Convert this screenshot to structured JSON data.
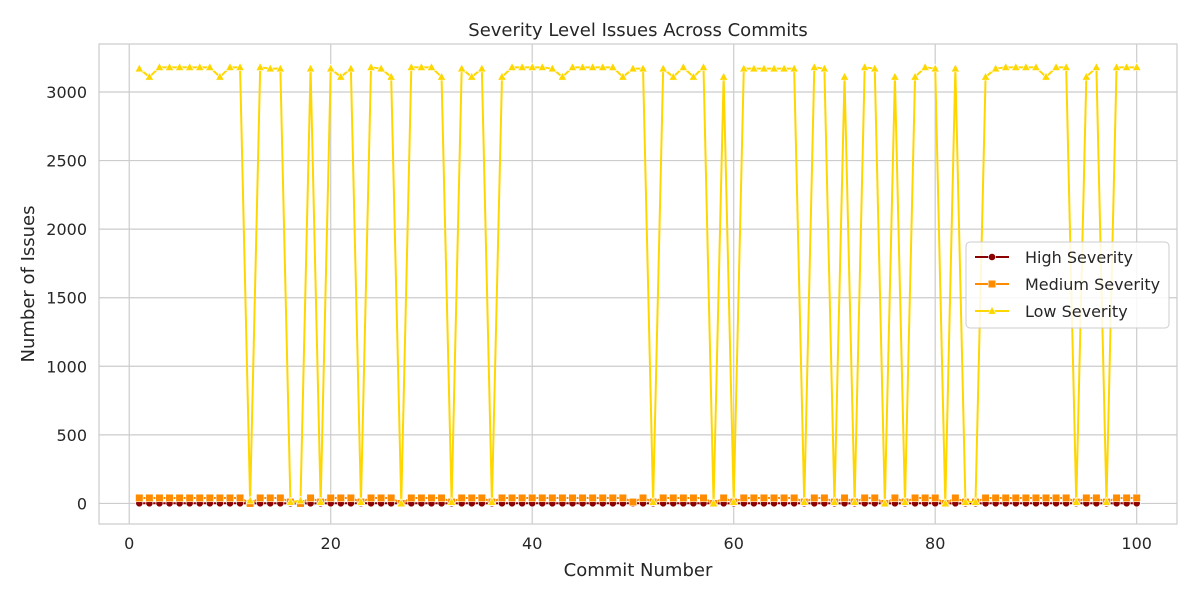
{
  "chart_data": {
    "type": "line",
    "title": "Severity Level Issues Across Commits",
    "xlabel": "Commit Number",
    "ylabel": "Number of Issues",
    "xlim": [
      -3,
      104
    ],
    "ylim": [
      -150,
      3350
    ],
    "xticks": [
      0,
      20,
      40,
      60,
      80,
      100
    ],
    "yticks": [
      0,
      500,
      1000,
      1500,
      2000,
      2500,
      3000
    ],
    "grid": true,
    "legend_position": "center-right",
    "x": [
      1,
      2,
      3,
      4,
      5,
      6,
      7,
      8,
      9,
      10,
      11,
      12,
      13,
      14,
      15,
      16,
      17,
      18,
      19,
      20,
      21,
      22,
      23,
      24,
      25,
      26,
      27,
      28,
      29,
      30,
      31,
      32,
      33,
      34,
      35,
      36,
      37,
      38,
      39,
      40,
      41,
      42,
      43,
      44,
      45,
      46,
      47,
      48,
      49,
      50,
      51,
      52,
      53,
      54,
      55,
      56,
      57,
      58,
      59,
      60,
      61,
      62,
      63,
      64,
      65,
      66,
      67,
      68,
      69,
      70,
      71,
      72,
      73,
      74,
      75,
      76,
      77,
      78,
      79,
      80,
      81,
      82,
      83,
      84,
      85,
      86,
      87,
      88,
      89,
      90,
      91,
      92,
      93,
      94,
      95,
      96,
      97,
      98,
      99,
      100
    ],
    "series": [
      {
        "name": "High Severity",
        "color": "#8b0000",
        "marker": "circle",
        "values": [
          1,
          1,
          1,
          1,
          1,
          1,
          1,
          1,
          1,
          1,
          1,
          0,
          1,
          1,
          1,
          0,
          0,
          1,
          0,
          1,
          1,
          1,
          1,
          1,
          1,
          1,
          0,
          1,
          1,
          1,
          1,
          0,
          1,
          1,
          1,
          0,
          1,
          1,
          1,
          1,
          1,
          1,
          1,
          1,
          1,
          1,
          1,
          1,
          1,
          1,
          1,
          0,
          1,
          1,
          1,
          1,
          1,
          0,
          1,
          0,
          1,
          1,
          1,
          1,
          1,
          1,
          0,
          1,
          1,
          0,
          1,
          0,
          1,
          1,
          0,
          1,
          0,
          1,
          1,
          1,
          0,
          1,
          0,
          0,
          1,
          1,
          1,
          1,
          1,
          1,
          1,
          1,
          1,
          1,
          1,
          1,
          0,
          1,
          1,
          1
        ]
      },
      {
        "name": "Medium Severity",
        "color": "#ff8c00",
        "marker": "square",
        "values": [
          40,
          40,
          40,
          40,
          40,
          40,
          40,
          40,
          40,
          40,
          40,
          0,
          40,
          40,
          40,
          10,
          0,
          40,
          10,
          40,
          40,
          40,
          10,
          40,
          40,
          40,
          0,
          40,
          40,
          40,
          40,
          10,
          40,
          40,
          40,
          10,
          40,
          40,
          40,
          40,
          40,
          40,
          40,
          40,
          40,
          40,
          40,
          40,
          40,
          10,
          40,
          10,
          40,
          40,
          40,
          40,
          40,
          0,
          40,
          10,
          40,
          40,
          40,
          40,
          40,
          40,
          10,
          40,
          40,
          10,
          40,
          10,
          40,
          40,
          0,
          40,
          10,
          40,
          40,
          40,
          0,
          40,
          10,
          10,
          40,
          40,
          40,
          40,
          40,
          40,
          40,
          40,
          40,
          10,
          40,
          40,
          10,
          40,
          40,
          40
        ]
      },
      {
        "name": "Low Severity",
        "color": "#ffd700",
        "marker": "triangle",
        "values": [
          3170,
          3110,
          3180,
          3180,
          3180,
          3180,
          3180,
          3180,
          3110,
          3180,
          3180,
          20,
          3180,
          3170,
          3170,
          10,
          20,
          3170,
          10,
          3170,
          3110,
          3170,
          10,
          3180,
          3170,
          3110,
          0,
          3180,
          3180,
          3180,
          3110,
          10,
          3170,
          3110,
          3170,
          10,
          3110,
          3180,
          3180,
          3180,
          3180,
          3170,
          3110,
          3180,
          3180,
          3180,
          3180,
          3180,
          3110,
          3170,
          3170,
          10,
          3170,
          3110,
          3180,
          3110,
          3180,
          0,
          3110,
          10,
          3170,
          3170,
          3170,
          3170,
          3170,
          3170,
          10,
          3180,
          3170,
          10,
          3110,
          10,
          3180,
          3170,
          0,
          3110,
          10,
          3110,
          3180,
          3170,
          0,
          3170,
          10,
          10,
          3110,
          3170,
          3180,
          3180,
          3180,
          3180,
          3110,
          3180,
          3180,
          10,
          3110,
          3180,
          10,
          3180,
          3180,
          3180
        ]
      }
    ]
  }
}
